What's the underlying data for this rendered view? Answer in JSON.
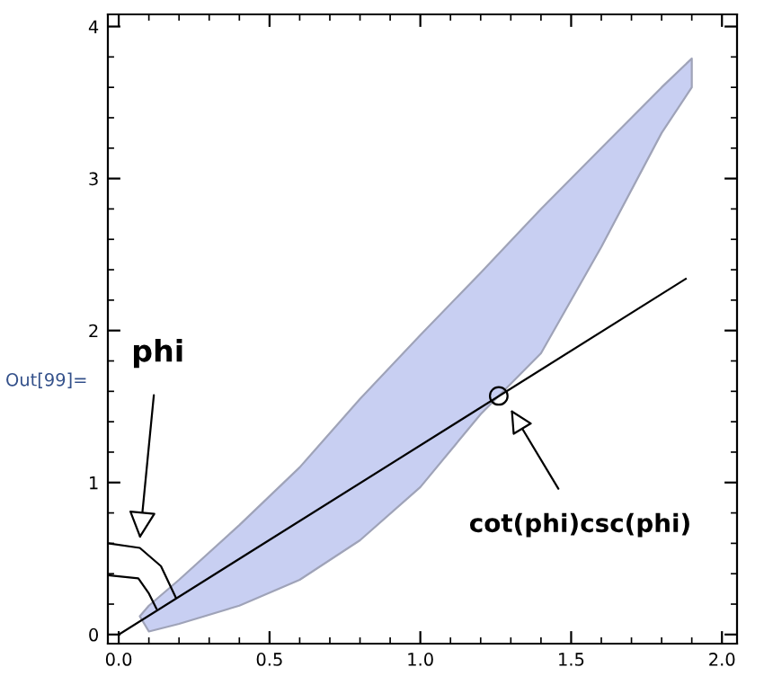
{
  "chart_data": {
    "type": "line",
    "series": [
      {
        "type": "area",
        "color": "#c8cff2",
        "x": [
          0.07,
          0.1,
          0.2,
          0.4,
          0.6,
          0.8,
          1.0,
          1.2,
          1.4,
          1.6,
          1.8,
          1.9
        ],
        "values": [
          null,
          null,
          null,
          null,
          null,
          null,
          null,
          null,
          null,
          null,
          null,
          null
        ],
        "upper": [
          0.12,
          0.19,
          0.36,
          0.72,
          1.1,
          1.55,
          1.97,
          2.38,
          2.8,
          3.2,
          3.6,
          3.79
        ],
        "lower": [
          0.12,
          0.02,
          0.07,
          0.19,
          0.36,
          0.62,
          0.97,
          1.45,
          1.85,
          2.55,
          3.3,
          3.6
        ]
      },
      {
        "color": "#000000",
        "x": [
          0,
          1.88
        ],
        "values": [
          0,
          2.34
        ]
      },
      {
        "color": "#000000",
        "x": [
          -0.036,
          0.07,
          0.14,
          0.19
        ],
        "values": [
          0.6,
          0.57,
          0.45,
          0.24
        ]
      },
      {
        "color": "#000000",
        "x": [
          -0.036,
          0.065,
          0.1,
          0.125
        ],
        "values": [
          0.39,
          0.37,
          0.27,
          0.17
        ]
      },
      {
        "type": "scatter",
        "color": "#000000",
        "marker": "circle",
        "x": [
          1.26
        ],
        "values": [
          1.57
        ]
      }
    ],
    "xlim": [
      -0.036,
      2.05
    ],
    "ylim": [
      -0.06,
      4.08
    ],
    "xticks": [
      {
        "value": 0,
        "label": "0.0"
      },
      0.5,
      {
        "value": 1,
        "label": "1.0"
      },
      1.5,
      {
        "value": 2,
        "label": "2.0"
      }
    ],
    "yticks": [
      0,
      1,
      2,
      3,
      4
    ],
    "grid": false,
    "annotations": [
      "Out[99]=",
      {
        "text": "phi",
        "x": 0.07,
        "y": 0.63
      },
      {
        "text": "cot(phi)csc(phi)",
        "x": 1.3,
        "y": 1.48
      }
    ]
  }
}
